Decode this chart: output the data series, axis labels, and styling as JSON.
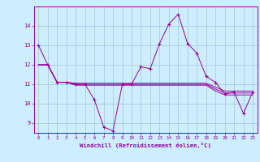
{
  "xlabel": "Windchill (Refroidissement éolien,°C)",
  "background_color": "#cceeff",
  "grid_color": "#aaccdd",
  "line_color": "#990099",
  "x": [
    0,
    1,
    2,
    3,
    4,
    5,
    6,
    7,
    8,
    9,
    10,
    11,
    12,
    13,
    14,
    15,
    16,
    17,
    18,
    19,
    20,
    21,
    22,
    23
  ],
  "y_main": [
    13.0,
    12.0,
    11.1,
    11.1,
    11.0,
    11.0,
    10.2,
    8.8,
    8.6,
    11.0,
    11.0,
    11.9,
    11.8,
    13.1,
    14.1,
    14.6,
    13.1,
    12.6,
    11.4,
    11.1,
    10.5,
    10.6,
    9.5,
    10.6
  ],
  "y_line1": [
    12.0,
    12.0,
    11.1,
    11.1,
    11.05,
    11.05,
    11.05,
    11.05,
    11.05,
    11.05,
    11.05,
    11.05,
    11.05,
    11.05,
    11.05,
    11.05,
    11.05,
    11.05,
    11.05,
    10.85,
    10.65,
    10.65,
    10.65,
    10.65
  ],
  "y_line2": [
    12.0,
    12.0,
    11.1,
    11.1,
    11.0,
    11.0,
    11.0,
    11.0,
    11.0,
    11.0,
    11.0,
    11.0,
    11.0,
    11.0,
    11.0,
    11.0,
    11.0,
    11.0,
    11.0,
    10.75,
    10.55,
    10.55,
    10.55,
    10.55
  ],
  "y_line3": [
    12.0,
    12.0,
    11.1,
    11.1,
    10.95,
    10.95,
    10.95,
    10.95,
    10.95,
    10.95,
    10.95,
    10.95,
    10.95,
    10.95,
    10.95,
    10.95,
    10.95,
    10.95,
    10.95,
    10.65,
    10.45,
    10.45,
    10.45,
    10.45
  ],
  "ylim": [
    8.5,
    15.0
  ],
  "yticks": [
    9,
    10,
    11,
    12,
    13,
    14
  ],
  "xticks": [
    0,
    1,
    2,
    3,
    4,
    5,
    6,
    7,
    8,
    9,
    10,
    11,
    12,
    13,
    14,
    15,
    16,
    17,
    18,
    19,
    20,
    21,
    22,
    23
  ],
  "marker": "+"
}
